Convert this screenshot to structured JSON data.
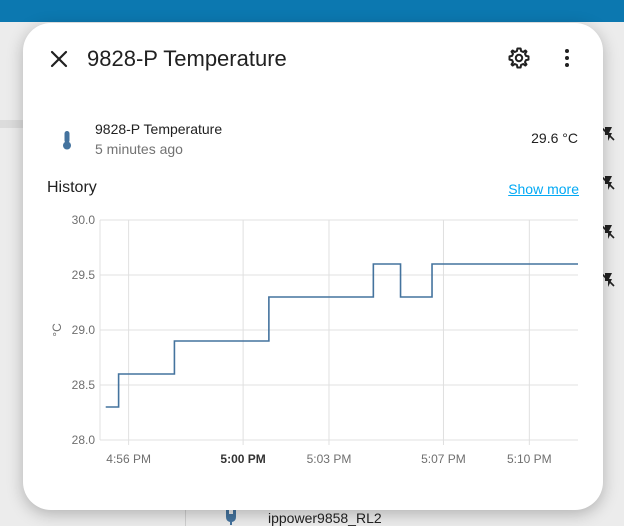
{
  "dialog": {
    "title": "9828-P Temperature"
  },
  "entity": {
    "name": "9828-P Temperature",
    "last_changed": "5 minutes ago",
    "state": "29.6 °C",
    "icon": "thermometer-icon"
  },
  "history": {
    "title": "History",
    "show_more": "Show more"
  },
  "background": {
    "bottom_label": "ippower9858_RL2"
  },
  "colors": {
    "accent": "#03a9f4",
    "line": "#44739e",
    "topbar": "#0c78b0"
  },
  "chart_data": {
    "type": "line",
    "step": true,
    "ylabel": "°C",
    "ylim": [
      28.0,
      30.0
    ],
    "yticks": [
      "30.0",
      "29.5",
      "29.0",
      "28.5",
      "28.0"
    ],
    "xlim_minutes": [
      -1,
      15.7
    ],
    "xticks": [
      {
        "label": "4:56 PM",
        "t": 0,
        "bold": false
      },
      {
        "label": "5:00 PM",
        "t": 4,
        "bold": true
      },
      {
        "label": "5:03 PM",
        "t": 7,
        "bold": false
      },
      {
        "label": "5:07 PM",
        "t": 11,
        "bold": false
      },
      {
        "label": "5:10 PM",
        "t": 14,
        "bold": false
      }
    ],
    "x_minutes": [
      -0.8,
      -0.35,
      1.6,
      4.9,
      8.55,
      9.5,
      10.6,
      15.7
    ],
    "values": [
      28.3,
      28.6,
      28.9,
      29.3,
      29.6,
      29.3,
      29.6,
      29.6
    ],
    "grid": true
  }
}
